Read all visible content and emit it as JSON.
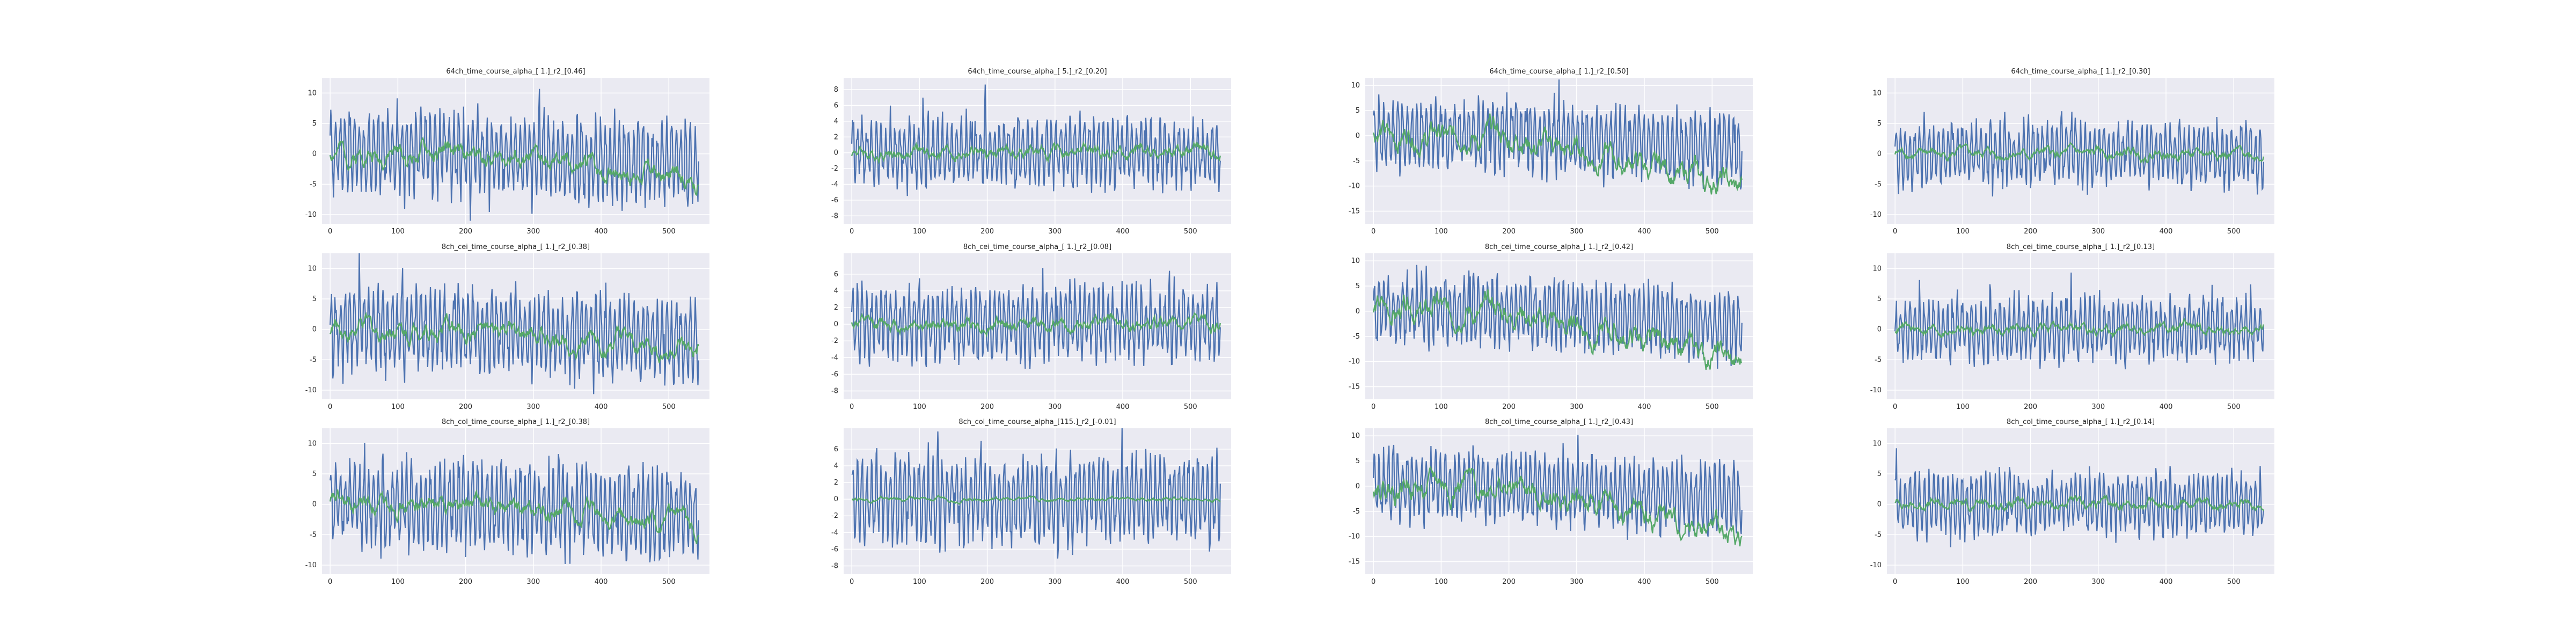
{
  "colors": {
    "axes_bg": "#EAEAF2",
    "grid": "#FFFFFF",
    "series_blue": "#4C72B0",
    "series_green": "#55A868",
    "text": "#262626"
  },
  "chart_data": [
    {
      "type": "line",
      "title": "64ch_time_course_alpha_[ 1.]_r2_[0.46]",
      "xlim": [
        -12,
        560
      ],
      "ylim": [
        -11.5,
        12.5
      ],
      "xticks": [
        0,
        100,
        200,
        300,
        400,
        500
      ],
      "yticks": [
        -10,
        -5,
        0,
        5,
        10
      ],
      "grid": true,
      "series": [
        {
          "values_shape": "blue_amp8",
          "trend": "down_-4",
          "seed": 1
        },
        {
          "values_shape": "green_amp2",
          "trend": "down_-4",
          "seed": 2
        }
      ]
    },
    {
      "type": "line",
      "title": "64ch_time_course_alpha_[ 5.]_r2_[0.20]",
      "xlim": [
        -12,
        560
      ],
      "ylim": [
        -9,
        9.5
      ],
      "xticks": [
        0,
        100,
        200,
        300,
        400,
        500
      ],
      "yticks": [
        -8,
        -6,
        -4,
        -2,
        0,
        2,
        4,
        6,
        8
      ],
      "grid": true,
      "series": [
        {
          "values_shape": "blue_amp5",
          "trend": "flat",
          "seed": 3
        },
        {
          "values_shape": "green_amp1",
          "trend": "flat",
          "seed": 4
        }
      ]
    },
    {
      "type": "line",
      "title": "64ch_time_course_alpha_[ 1.]_r2_[0.50]",
      "xlim": [
        -12,
        560
      ],
      "ylim": [
        -17.5,
        11.5
      ],
      "xticks": [
        0,
        100,
        200,
        300,
        400,
        500
      ],
      "yticks": [
        -15,
        -10,
        -5,
        0,
        5,
        10
      ],
      "grid": true,
      "series": [
        {
          "values_shape": "blue_amp8",
          "trend": "down_-6",
          "seed": 5
        },
        {
          "values_shape": "green_amp3",
          "trend": "down_-10",
          "seed": 6
        }
      ]
    },
    {
      "type": "line",
      "title": "64ch_time_course_alpha_[ 1.]_r2_[0.30]",
      "xlim": [
        -12,
        560
      ],
      "ylim": [
        -11.5,
        12.5
      ],
      "xticks": [
        0,
        100,
        200,
        300,
        400,
        500
      ],
      "yticks": [
        -10,
        -5,
        0,
        5,
        10
      ],
      "grid": true,
      "series": [
        {
          "values_shape": "blue_amp6",
          "trend": "flat",
          "seed": 7
        },
        {
          "values_shape": "green_amp1",
          "trend": "flat",
          "seed": 8
        }
      ]
    },
    {
      "type": "line",
      "title": "8ch_cei_time_course_alpha_[ 1.]_r2_[0.38]",
      "xlim": [
        -12,
        560
      ],
      "ylim": [
        -11.5,
        12.5
      ],
      "xticks": [
        0,
        100,
        200,
        300,
        400,
        500
      ],
      "yticks": [
        -10,
        -5,
        0,
        5,
        10
      ],
      "grid": true,
      "series": [
        {
          "values_shape": "blue_amp8",
          "trend": "down_-4",
          "seed": 9
        },
        {
          "values_shape": "green_amp2",
          "trend": "down_-4",
          "seed": 10
        }
      ]
    },
    {
      "type": "line",
      "title": "8ch_cei_time_course_alpha_[ 1.]_r2_[0.08]",
      "xlim": [
        -12,
        560
      ],
      "ylim": [
        -9,
        8.5
      ],
      "xticks": [
        0,
        100,
        200,
        300,
        400,
        500
      ],
      "yticks": [
        -8,
        -6,
        -4,
        -2,
        0,
        2,
        4,
        6
      ],
      "grid": true,
      "series": [
        {
          "values_shape": "blue_amp5",
          "trend": "flat",
          "seed": 11
        },
        {
          "values_shape": "green_amp1",
          "trend": "flat",
          "seed": 12
        }
      ]
    },
    {
      "type": "line",
      "title": "8ch_cei_time_course_alpha_[ 1.]_r2_[0.42]",
      "xlim": [
        -12,
        560
      ],
      "ylim": [
        -17.5,
        11.5
      ],
      "xticks": [
        0,
        100,
        200,
        300,
        400,
        500
      ],
      "yticks": [
        -15,
        -10,
        -5,
        0,
        5,
        10
      ],
      "grid": true,
      "series": [
        {
          "values_shape": "blue_amp8",
          "trend": "down_-6",
          "seed": 13
        },
        {
          "values_shape": "green_amp3",
          "trend": "down_-10",
          "seed": 14
        }
      ]
    },
    {
      "type": "line",
      "title": "8ch_cei_time_course_alpha_[ 1.]_r2_[0.13]",
      "xlim": [
        -12,
        560
      ],
      "ylim": [
        -11.5,
        12.5
      ],
      "xticks": [
        0,
        100,
        200,
        300,
        400,
        500
      ],
      "yticks": [
        -10,
        -5,
        0,
        5,
        10
      ],
      "grid": true,
      "series": [
        {
          "values_shape": "blue_amp6",
          "trend": "flat",
          "seed": 15
        },
        {
          "values_shape": "green_amp1",
          "trend": "flat",
          "seed": 16
        }
      ]
    },
    {
      "type": "line",
      "title": "8ch_col_time_course_alpha_[ 1.]_r2_[0.38]",
      "xlim": [
        -12,
        560
      ],
      "ylim": [
        -11.5,
        12.5
      ],
      "xticks": [
        0,
        100,
        200,
        300,
        400,
        500
      ],
      "yticks": [
        -10,
        -5,
        0,
        5,
        10
      ],
      "grid": true,
      "series": [
        {
          "values_shape": "blue_amp8",
          "trend": "down_-4",
          "seed": 17
        },
        {
          "values_shape": "green_amp2",
          "trend": "down_-4",
          "seed": 18
        }
      ]
    },
    {
      "type": "line",
      "title": "8ch_col_time_course_alpha_[115.]_r2_[-0.01]",
      "xlim": [
        -12,
        560
      ],
      "ylim": [
        -9,
        8.5
      ],
      "xticks": [
        0,
        100,
        200,
        300,
        400,
        500
      ],
      "yticks": [
        -8,
        -6,
        -4,
        -2,
        0,
        2,
        4,
        6
      ],
      "grid": true,
      "series": [
        {
          "values_shape": "blue_amp6",
          "trend": "flat",
          "seed": 19
        },
        {
          "values_shape": "green_amp0.3",
          "trend": "flat",
          "seed": 20
        }
      ]
    },
    {
      "type": "line",
      "title": "8ch_col_time_course_alpha_[ 1.]_r2_[0.43]",
      "xlim": [
        -12,
        560
      ],
      "ylim": [
        -17.5,
        11.5
      ],
      "xticks": [
        0,
        100,
        200,
        300,
        400,
        500
      ],
      "yticks": [
        -15,
        -10,
        -5,
        0,
        5,
        10
      ],
      "grid": true,
      "series": [
        {
          "values_shape": "blue_amp8",
          "trend": "down_-6",
          "seed": 21
        },
        {
          "values_shape": "green_amp3",
          "trend": "down_-10",
          "seed": 22
        }
      ]
    },
    {
      "type": "line",
      "title": "8ch_col_time_course_alpha_[ 1.]_r2_[0.14]",
      "xlim": [
        -12,
        560
      ],
      "ylim": [
        -11.5,
        12.5
      ],
      "xticks": [
        0,
        100,
        200,
        300,
        400,
        500
      ],
      "yticks": [
        -10,
        -5,
        0,
        5,
        10
      ],
      "grid": true,
      "series": [
        {
          "values_shape": "blue_amp6",
          "trend": "flat",
          "seed": 23
        },
        {
          "values_shape": "green_amp1",
          "trend": "flat",
          "seed": 24
        }
      ]
    }
  ]
}
